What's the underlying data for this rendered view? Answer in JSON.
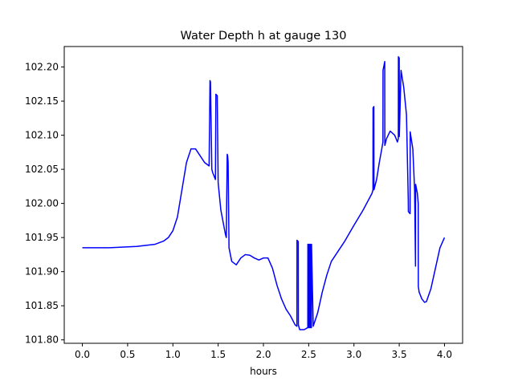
{
  "chart_data": {
    "type": "line",
    "title": "Water Depth h at gauge 130",
    "xlabel": "hours",
    "ylabel": "",
    "xlim": [
      -0.2,
      4.2
    ],
    "ylim": [
      101.795,
      102.23
    ],
    "xticks": [
      0.0,
      0.5,
      1.0,
      1.5,
      2.0,
      2.5,
      3.0,
      3.5,
      4.0
    ],
    "xtick_labels": [
      "0.0",
      "0.5",
      "1.0",
      "1.5",
      "2.0",
      "2.5",
      "3.0",
      "3.5",
      "4.0"
    ],
    "yticks": [
      101.8,
      101.85,
      101.9,
      101.95,
      102.0,
      102.05,
      102.1,
      102.15,
      102.2
    ],
    "ytick_labels": [
      "101.80",
      "101.85",
      "101.90",
      "101.95",
      "102.00",
      "102.05",
      "102.10",
      "102.15",
      "102.20"
    ],
    "grid": false,
    "series": [
      {
        "color": "#0000ff",
        "x": [
          0.0,
          0.3,
          0.6,
          0.8,
          0.9,
          0.95,
          1.0,
          1.05,
          1.1,
          1.15,
          1.2,
          1.25,
          1.3,
          1.35,
          1.4,
          1.41,
          1.415,
          1.43,
          1.44,
          1.47,
          1.475,
          1.49,
          1.5,
          1.53,
          1.58,
          1.59,
          1.6,
          1.605,
          1.61,
          1.62,
          1.65,
          1.7,
          1.75,
          1.8,
          1.85,
          1.9,
          1.95,
          2.0,
          2.05,
          2.1,
          2.15,
          2.2,
          2.25,
          2.3,
          2.35,
          2.37,
          2.371,
          2.385,
          2.386,
          2.4,
          2.45,
          2.49,
          2.491,
          2.5,
          2.501,
          2.51,
          2.511,
          2.52,
          2.521,
          2.53,
          2.531,
          2.55,
          2.6,
          2.65,
          2.7,
          2.75,
          2.8,
          2.9,
          3.0,
          3.1,
          3.2,
          3.21,
          3.211,
          3.22,
          3.221,
          3.25,
          3.28,
          3.31,
          3.32,
          3.321,
          3.34,
          3.341,
          3.36,
          3.4,
          3.45,
          3.48,
          3.49,
          3.491,
          3.5,
          3.501,
          3.52,
          3.55,
          3.58,
          3.6,
          3.601,
          3.62,
          3.621,
          3.65,
          3.67,
          3.68,
          3.681,
          3.7,
          3.71,
          3.711,
          3.72,
          3.75,
          3.78,
          3.8,
          3.85,
          3.9,
          3.95,
          4.0
        ],
        "y": [
          101.935,
          101.935,
          101.937,
          101.94,
          101.945,
          101.95,
          101.96,
          101.98,
          102.02,
          102.06,
          102.08,
          102.08,
          102.07,
          102.06,
          102.055,
          102.18,
          102.178,
          102.05,
          102.045,
          102.035,
          102.16,
          102.158,
          102.03,
          101.99,
          101.955,
          101.95,
          102.072,
          102.07,
          102.06,
          101.935,
          101.915,
          101.91,
          101.92,
          101.925,
          101.924,
          101.92,
          101.917,
          101.92,
          101.92,
          101.905,
          101.88,
          101.86,
          101.845,
          101.835,
          101.822,
          101.82,
          101.946,
          101.944,
          101.822,
          101.815,
          101.815,
          101.818,
          101.94,
          101.94,
          101.818,
          101.818,
          101.94,
          101.94,
          101.818,
          101.818,
          101.94,
          101.82,
          101.84,
          101.87,
          101.895,
          101.915,
          101.925,
          101.945,
          101.968,
          101.99,
          102.015,
          102.02,
          102.14,
          102.142,
          102.02,
          102.035,
          102.06,
          102.082,
          102.09,
          102.195,
          102.208,
          102.085,
          102.095,
          102.106,
          102.1,
          102.09,
          102.095,
          102.215,
          102.213,
          102.098,
          102.195,
          102.17,
          102.13,
          102.005,
          101.988,
          101.985,
          102.105,
          102.08,
          102.02,
          101.908,
          102.028,
          102.015,
          102.0,
          101.878,
          101.87,
          101.86,
          101.855,
          101.856,
          101.875,
          101.905,
          101.935,
          101.95
        ]
      }
    ]
  }
}
